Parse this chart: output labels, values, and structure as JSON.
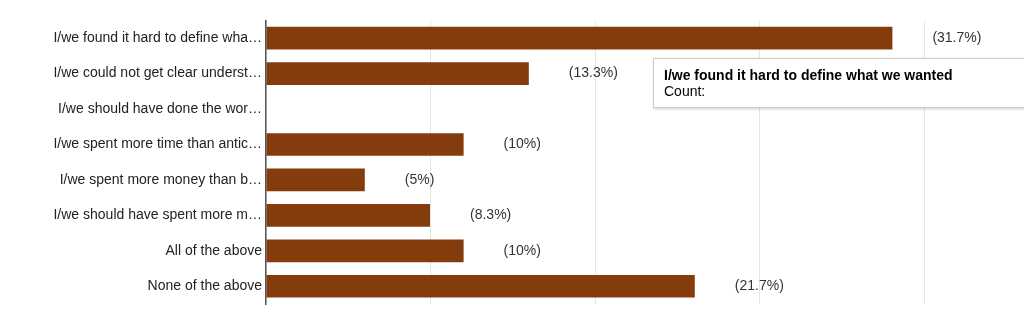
{
  "chart_data": {
    "type": "bar",
    "orientation": "horizontal",
    "categories": [
      "I/we found it hard to define wha…",
      "I/we could not get clear underst…",
      "I/we should have done the wor…",
      "I/we spent more time than antic…",
      "I/we spent more money than b…",
      "I/we should have spent more m…",
      "All of the above",
      "None of the above"
    ],
    "values": [
      31.7,
      13.3,
      null,
      10,
      5,
      8.3,
      10,
      21.7
    ],
    "value_labels": [
      "(31.7%)",
      "(13.3%)",
      null,
      "(10%)",
      "(5%)",
      "(8.3%)",
      "(10%)",
      "(21.7%)"
    ],
    "color": "#843c0c",
    "xlim": [
      0,
      33.3
    ],
    "xticks": [
      {
        "value": 0,
        "label": null
      },
      {
        "value": 8.3,
        "label": null
      },
      {
        "value": 16.7,
        "label": null
      },
      {
        "value": 25,
        "label": null
      },
      {
        "value": 33.3,
        "label": null
      }
    ],
    "grid": "x",
    "tick_labels": "y",
    "annotations": [
      "I/we found it hard to define what we wanted",
      "Count:"
    ]
  }
}
